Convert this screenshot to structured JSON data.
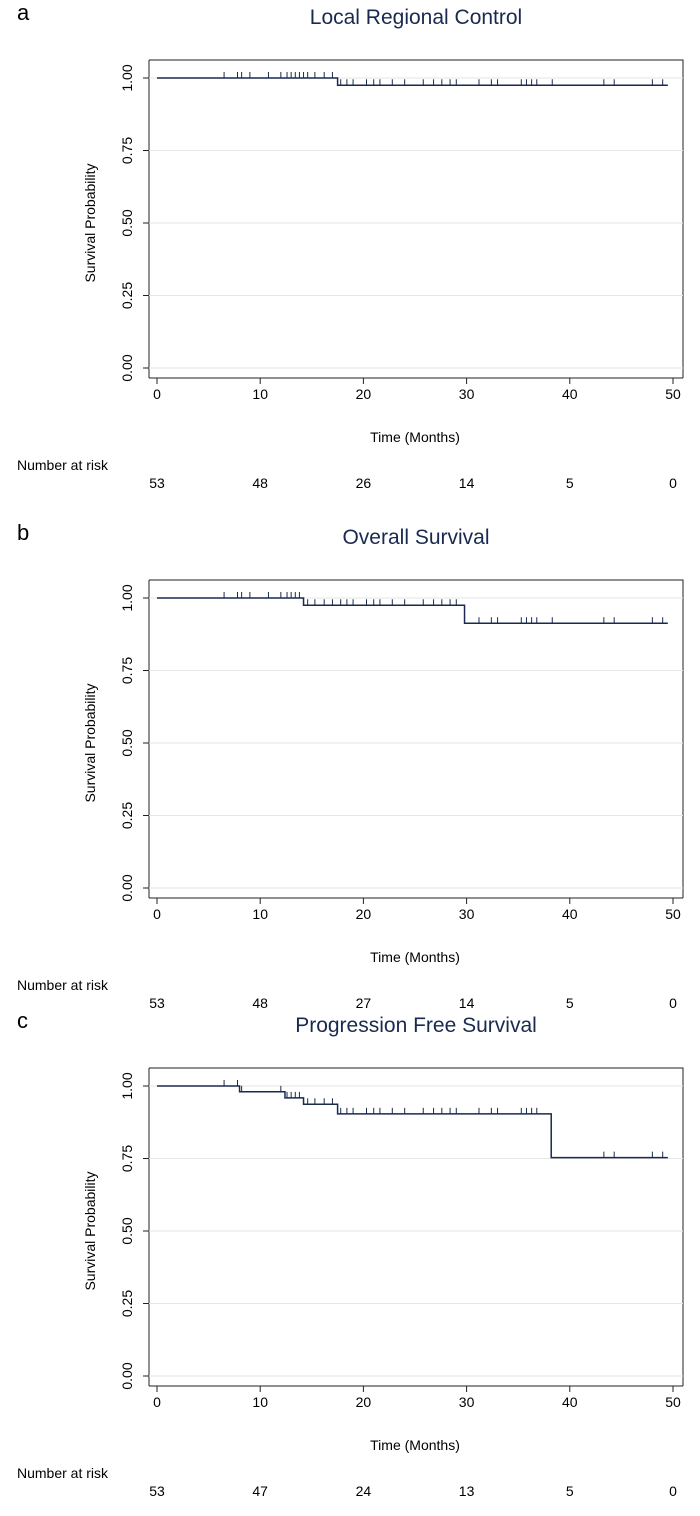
{
  "chart_data": [
    {
      "type": "line",
      "panel_label": "a",
      "title": "Local Regional Control",
      "xlabel": "Time (Months)",
      "ylabel": "Survival Probability",
      "xlim": [
        0,
        50
      ],
      "ylim": [
        0,
        1
      ],
      "x_ticks": [
        "0",
        "10",
        "20",
        "30",
        "40",
        "50"
      ],
      "y_ticks": [
        "0.00",
        "0.25",
        "0.50",
        "0.75",
        "1.00"
      ],
      "grid": true,
      "line_color": "#1a2a4f",
      "series": [
        {
          "step_x": [
            0,
            17.5,
            49.5
          ],
          "step_y": [
            1.0,
            0.975,
            0.975
          ],
          "censor_x": [
            6.5,
            7.8,
            8.2,
            9.0,
            10.8,
            12.0,
            12.6,
            13.0,
            13.4,
            13.8,
            14.2,
            14.6,
            15.3,
            16.2,
            17.0,
            17.8,
            18.4,
            19.0,
            20.3,
            21.0,
            21.6,
            22.8,
            24.0,
            25.8,
            26.8,
            27.6,
            28.4,
            29.0,
            31.2,
            32.4,
            33.0,
            35.3,
            35.8,
            36.3,
            36.8,
            38.3,
            43.3,
            44.3,
            48.0,
            49.0
          ]
        }
      ],
      "risk_label": "Number at risk",
      "risk_times": [
        0,
        10,
        20,
        30,
        40,
        50
      ],
      "number_at_risk": [
        "53",
        "48",
        "26",
        "14",
        "5",
        "0"
      ]
    },
    {
      "type": "line",
      "panel_label": "b",
      "title": "Overall Survival",
      "xlabel": "Time (Months)",
      "ylabel": "Survival Probability",
      "xlim": [
        0,
        50
      ],
      "ylim": [
        0,
        1
      ],
      "x_ticks": [
        "0",
        "10",
        "20",
        "30",
        "40",
        "50"
      ],
      "y_ticks": [
        "0.00",
        "0.25",
        "0.50",
        "0.75",
        "1.00"
      ],
      "grid": true,
      "line_color": "#1a2a4f",
      "series": [
        {
          "step_x": [
            0,
            14.2,
            29.8,
            49.5
          ],
          "step_y": [
            1.0,
            0.975,
            0.913,
            0.913
          ],
          "censor_x": [
            6.5,
            7.8,
            8.2,
            9.0,
            10.8,
            12.0,
            12.6,
            13.0,
            13.4,
            13.8,
            14.6,
            15.3,
            16.2,
            17.0,
            17.8,
            18.4,
            19.0,
            20.3,
            21.0,
            21.6,
            22.8,
            24.0,
            25.8,
            26.8,
            27.6,
            28.4,
            29.0,
            31.2,
            32.4,
            33.0,
            35.3,
            35.8,
            36.3,
            36.8,
            38.3,
            43.3,
            44.3,
            48.0,
            49.0
          ]
        }
      ],
      "risk_label": "Number at risk",
      "risk_times": [
        0,
        10,
        20,
        30,
        40,
        50
      ],
      "number_at_risk": [
        "53",
        "48",
        "27",
        "14",
        "5",
        "0"
      ]
    },
    {
      "type": "line",
      "panel_label": "c",
      "title": "Progression Free Survival",
      "xlabel": "Time (Months)",
      "ylabel": "Survival Probability",
      "xlim": [
        0,
        50
      ],
      "ylim": [
        0,
        1
      ],
      "x_ticks": [
        "0",
        "10",
        "20",
        "30",
        "40",
        "50"
      ],
      "y_ticks": [
        "0.00",
        "0.25",
        "0.50",
        "0.75",
        "1.00"
      ],
      "grid": true,
      "line_color": "#1a2a4f",
      "series": [
        {
          "step_x": [
            0,
            8.0,
            12.4,
            14.2,
            17.5,
            38.2,
            49.5
          ],
          "step_y": [
            1.0,
            0.98,
            0.959,
            0.937,
            0.904,
            0.753,
            0.753
          ],
          "censor_x": [
            6.5,
            7.8,
            8.2,
            12.0,
            12.6,
            13.0,
            13.4,
            13.8,
            14.6,
            15.3,
            16.2,
            17.0,
            17.8,
            18.4,
            19.0,
            20.3,
            21.0,
            21.6,
            22.8,
            24.0,
            25.8,
            26.8,
            27.6,
            28.4,
            29.0,
            31.2,
            32.4,
            33.0,
            35.3,
            35.8,
            36.3,
            36.8,
            43.3,
            44.3,
            48.0,
            49.0
          ]
        }
      ],
      "risk_label": "Number at risk",
      "risk_times": [
        0,
        10,
        20,
        30,
        40,
        50
      ],
      "number_at_risk": [
        "53",
        "47",
        "24",
        "13",
        "5",
        "0"
      ]
    }
  ]
}
